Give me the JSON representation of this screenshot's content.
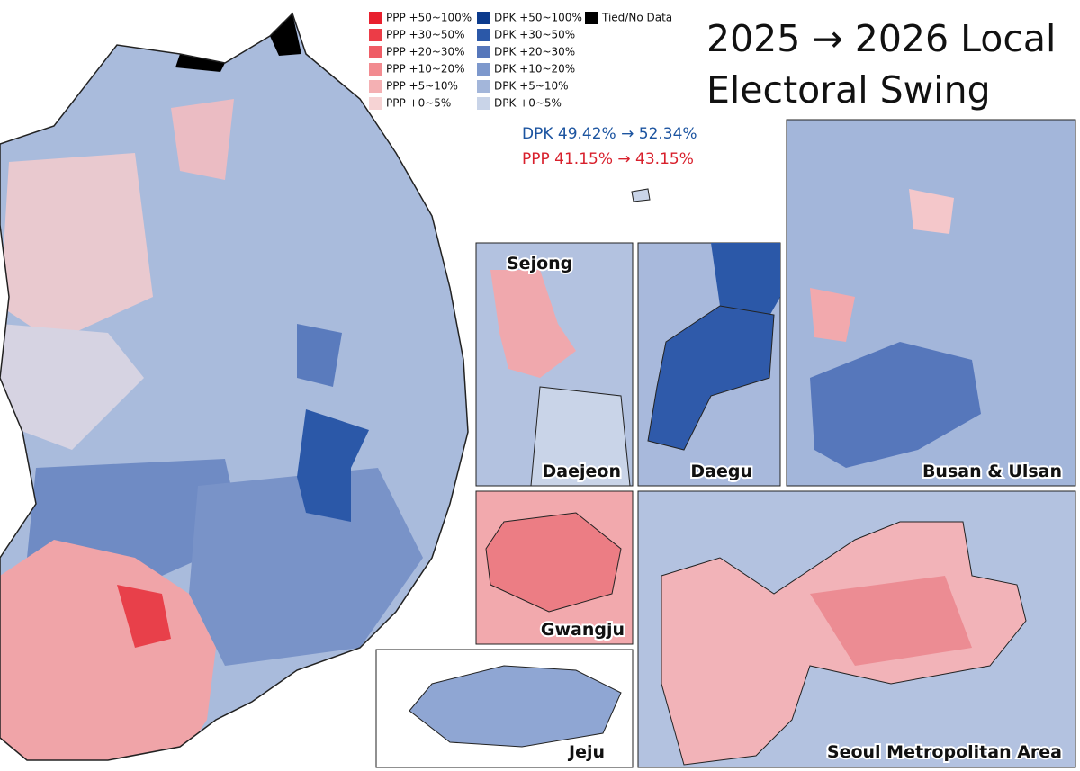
{
  "title_lines": [
    "2025 → 2026 Local",
    "Electoral Swing"
  ],
  "legend": {
    "columns": [
      [
        {
          "label": "PPP +50~100%",
          "color": "#e8202e"
        },
        {
          "label": "PPP +30~50%",
          "color": "#ec3c47"
        },
        {
          "label": "PPP +20~30%",
          "color": "#ef5d66"
        },
        {
          "label": "PPP +10~20%",
          "color": "#f28b90"
        },
        {
          "label": "PPP +5~10%",
          "color": "#f4b0b3"
        },
        {
          "label": "PPP +0~5%",
          "color": "#f6d3d4"
        }
      ],
      [
        {
          "label": "DPK +50~100%",
          "color": "#0b3a8c"
        },
        {
          "label": "DPK +30~50%",
          "color": "#2b58a8"
        },
        {
          "label": "DPK +20~30%",
          "color": "#5677bb"
        },
        {
          "label": "DPK +10~20%",
          "color": "#7d98cc"
        },
        {
          "label": "DPK +5~10%",
          "color": "#a3b6da"
        },
        {
          "label": "DPK +0~5%",
          "color": "#c9d4e8"
        }
      ],
      [
        {
          "label": "Tied/No Data",
          "color": "#000000"
        }
      ]
    ]
  },
  "stats": [
    {
      "text": "DPK 49.42% → 52.34%",
      "color": "#1c54a0"
    },
    {
      "text": "PPP 41.15% → 43.15%",
      "color": "#d8202c"
    }
  ],
  "insets": {
    "sejong": "Sejong",
    "daejeon": "Daejeon",
    "daegu": "Daegu",
    "busan_ulsan": "Busan & Ulsan",
    "gwangju": "Gwangju",
    "jeju": "Jeju",
    "seoul": "Seoul Metropolitan Area"
  }
}
